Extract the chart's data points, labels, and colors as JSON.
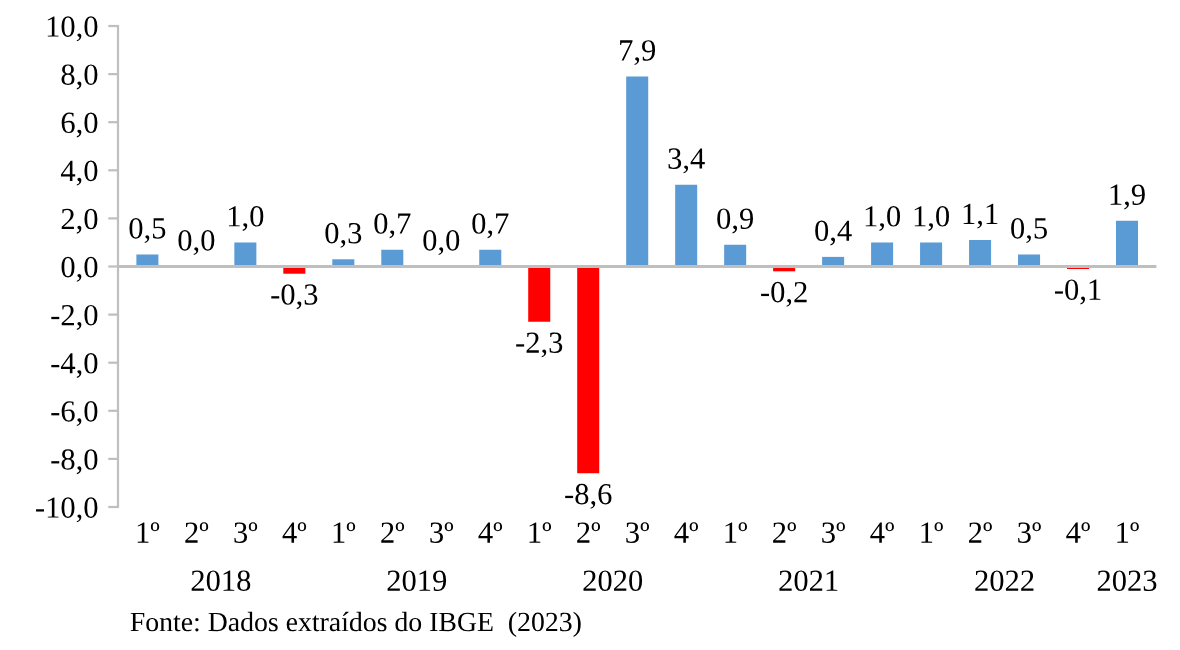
{
  "chart_data": {
    "type": "bar",
    "categories": [
      "1º",
      "2º",
      "3º",
      "4º",
      "1º",
      "2º",
      "3º",
      "4º",
      "1º",
      "2º",
      "3º",
      "4º",
      "1º",
      "2º",
      "3º",
      "4º",
      "1º",
      "2º",
      "3º",
      "4º",
      "1º"
    ],
    "values": [
      0.5,
      0.0,
      1.0,
      -0.3,
      0.3,
      0.7,
      0.0,
      0.7,
      -2.3,
      -8.6,
      7.9,
      3.4,
      0.9,
      -0.2,
      0.4,
      1.0,
      1.0,
      1.1,
      0.5,
      -0.1,
      1.9
    ],
    "value_labels": [
      "0,5",
      "0,0",
      "1,0",
      "-0,3",
      "0,3",
      "0,7",
      "0,0",
      "0,7",
      "-2,3",
      "-8,6",
      "7,9",
      "3,4",
      "0,9",
      "-0,2",
      "0,4",
      "1,0",
      "1,0",
      "1,1",
      "0,5",
      "-0,1",
      "1,9"
    ],
    "colors": [
      "#5b9bd5",
      "#5b9bd5",
      "#5b9bd5",
      "#ff0000",
      "#5b9bd5",
      "#5b9bd5",
      "#5b9bd5",
      "#5b9bd5",
      "#ff0000",
      "#ff0000",
      "#5b9bd5",
      "#5b9bd5",
      "#5b9bd5",
      "#ff0000",
      "#5b9bd5",
      "#5b9bd5",
      "#5b9bd5",
      "#5b9bd5",
      "#5b9bd5",
      "#ff0000",
      "#5b9bd5"
    ],
    "ylim": [
      -10,
      10
    ],
    "yticks": [
      {
        "value": -10,
        "label": "-10,0"
      },
      {
        "value": -8,
        "label": "-8,0"
      },
      {
        "value": -6,
        "label": "-6,0"
      },
      {
        "value": -4,
        "label": "-4,0"
      },
      {
        "value": -2,
        "label": "-2,0"
      },
      {
        "value": 0,
        "label": "0,0"
      },
      {
        "value": 2,
        "label": "2,0"
      },
      {
        "value": 4,
        "label": "4,0"
      },
      {
        "value": 6,
        "label": "6,0"
      },
      {
        "value": 8,
        "label": "8,0"
      },
      {
        "value": 10,
        "label": "10,0"
      }
    ],
    "grid": false,
    "ref_lines": [
      {
        "axis": "y",
        "value": 0,
        "color": "#bfbfbf"
      }
    ],
    "legend": false,
    "annotations": [
      "2018",
      "2019",
      "2020",
      "2021",
      "2022",
      "2023",
      "Fonte: Dados extraídos do IBGE  (2023)"
    ]
  }
}
